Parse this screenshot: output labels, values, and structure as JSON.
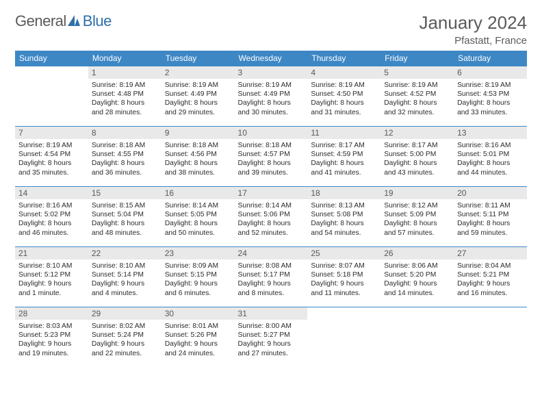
{
  "logo": {
    "text_a": "General",
    "text_b": "Blue"
  },
  "title": "January 2024",
  "location": "Pfastatt, France",
  "headers": [
    "Sunday",
    "Monday",
    "Tuesday",
    "Wednesday",
    "Thursday",
    "Friday",
    "Saturday"
  ],
  "colors": {
    "header_bg": "#3d87c5",
    "header_fg": "#ffffff",
    "daynum_bg": "#e9e9e9",
    "rule": "#3d87c5",
    "logo_gray": "#5a5a5a",
    "logo_blue": "#2f6fa8",
    "text": "#2b2b2b"
  },
  "typography": {
    "title_fontsize": 26,
    "location_fontsize": 15,
    "header_fontsize": 12,
    "daynum_fontsize": 12,
    "body_fontsize": 10.3
  },
  "weeks": [
    [
      {
        "n": "",
        "lines": []
      },
      {
        "n": "1",
        "lines": [
          "Sunrise: 8:19 AM",
          "Sunset: 4:48 PM",
          "Daylight: 8 hours",
          "and 28 minutes."
        ]
      },
      {
        "n": "2",
        "lines": [
          "Sunrise: 8:19 AM",
          "Sunset: 4:49 PM",
          "Daylight: 8 hours",
          "and 29 minutes."
        ]
      },
      {
        "n": "3",
        "lines": [
          "Sunrise: 8:19 AM",
          "Sunset: 4:49 PM",
          "Daylight: 8 hours",
          "and 30 minutes."
        ]
      },
      {
        "n": "4",
        "lines": [
          "Sunrise: 8:19 AM",
          "Sunset: 4:50 PM",
          "Daylight: 8 hours",
          "and 31 minutes."
        ]
      },
      {
        "n": "5",
        "lines": [
          "Sunrise: 8:19 AM",
          "Sunset: 4:52 PM",
          "Daylight: 8 hours",
          "and 32 minutes."
        ]
      },
      {
        "n": "6",
        "lines": [
          "Sunrise: 8:19 AM",
          "Sunset: 4:53 PM",
          "Daylight: 8 hours",
          "and 33 minutes."
        ]
      }
    ],
    [
      {
        "n": "7",
        "lines": [
          "Sunrise: 8:19 AM",
          "Sunset: 4:54 PM",
          "Daylight: 8 hours",
          "and 35 minutes."
        ]
      },
      {
        "n": "8",
        "lines": [
          "Sunrise: 8:18 AM",
          "Sunset: 4:55 PM",
          "Daylight: 8 hours",
          "and 36 minutes."
        ]
      },
      {
        "n": "9",
        "lines": [
          "Sunrise: 8:18 AM",
          "Sunset: 4:56 PM",
          "Daylight: 8 hours",
          "and 38 minutes."
        ]
      },
      {
        "n": "10",
        "lines": [
          "Sunrise: 8:18 AM",
          "Sunset: 4:57 PM",
          "Daylight: 8 hours",
          "and 39 minutes."
        ]
      },
      {
        "n": "11",
        "lines": [
          "Sunrise: 8:17 AM",
          "Sunset: 4:59 PM",
          "Daylight: 8 hours",
          "and 41 minutes."
        ]
      },
      {
        "n": "12",
        "lines": [
          "Sunrise: 8:17 AM",
          "Sunset: 5:00 PM",
          "Daylight: 8 hours",
          "and 43 minutes."
        ]
      },
      {
        "n": "13",
        "lines": [
          "Sunrise: 8:16 AM",
          "Sunset: 5:01 PM",
          "Daylight: 8 hours",
          "and 44 minutes."
        ]
      }
    ],
    [
      {
        "n": "14",
        "lines": [
          "Sunrise: 8:16 AM",
          "Sunset: 5:02 PM",
          "Daylight: 8 hours",
          "and 46 minutes."
        ]
      },
      {
        "n": "15",
        "lines": [
          "Sunrise: 8:15 AM",
          "Sunset: 5:04 PM",
          "Daylight: 8 hours",
          "and 48 minutes."
        ]
      },
      {
        "n": "16",
        "lines": [
          "Sunrise: 8:14 AM",
          "Sunset: 5:05 PM",
          "Daylight: 8 hours",
          "and 50 minutes."
        ]
      },
      {
        "n": "17",
        "lines": [
          "Sunrise: 8:14 AM",
          "Sunset: 5:06 PM",
          "Daylight: 8 hours",
          "and 52 minutes."
        ]
      },
      {
        "n": "18",
        "lines": [
          "Sunrise: 8:13 AM",
          "Sunset: 5:08 PM",
          "Daylight: 8 hours",
          "and 54 minutes."
        ]
      },
      {
        "n": "19",
        "lines": [
          "Sunrise: 8:12 AM",
          "Sunset: 5:09 PM",
          "Daylight: 8 hours",
          "and 57 minutes."
        ]
      },
      {
        "n": "20",
        "lines": [
          "Sunrise: 8:11 AM",
          "Sunset: 5:11 PM",
          "Daylight: 8 hours",
          "and 59 minutes."
        ]
      }
    ],
    [
      {
        "n": "21",
        "lines": [
          "Sunrise: 8:10 AM",
          "Sunset: 5:12 PM",
          "Daylight: 9 hours",
          "and 1 minute."
        ]
      },
      {
        "n": "22",
        "lines": [
          "Sunrise: 8:10 AM",
          "Sunset: 5:14 PM",
          "Daylight: 9 hours",
          "and 4 minutes."
        ]
      },
      {
        "n": "23",
        "lines": [
          "Sunrise: 8:09 AM",
          "Sunset: 5:15 PM",
          "Daylight: 9 hours",
          "and 6 minutes."
        ]
      },
      {
        "n": "24",
        "lines": [
          "Sunrise: 8:08 AM",
          "Sunset: 5:17 PM",
          "Daylight: 9 hours",
          "and 8 minutes."
        ]
      },
      {
        "n": "25",
        "lines": [
          "Sunrise: 8:07 AM",
          "Sunset: 5:18 PM",
          "Daylight: 9 hours",
          "and 11 minutes."
        ]
      },
      {
        "n": "26",
        "lines": [
          "Sunrise: 8:06 AM",
          "Sunset: 5:20 PM",
          "Daylight: 9 hours",
          "and 14 minutes."
        ]
      },
      {
        "n": "27",
        "lines": [
          "Sunrise: 8:04 AM",
          "Sunset: 5:21 PM",
          "Daylight: 9 hours",
          "and 16 minutes."
        ]
      }
    ],
    [
      {
        "n": "28",
        "lines": [
          "Sunrise: 8:03 AM",
          "Sunset: 5:23 PM",
          "Daylight: 9 hours",
          "and 19 minutes."
        ]
      },
      {
        "n": "29",
        "lines": [
          "Sunrise: 8:02 AM",
          "Sunset: 5:24 PM",
          "Daylight: 9 hours",
          "and 22 minutes."
        ]
      },
      {
        "n": "30",
        "lines": [
          "Sunrise: 8:01 AM",
          "Sunset: 5:26 PM",
          "Daylight: 9 hours",
          "and 24 minutes."
        ]
      },
      {
        "n": "31",
        "lines": [
          "Sunrise: 8:00 AM",
          "Sunset: 5:27 PM",
          "Daylight: 9 hours",
          "and 27 minutes."
        ]
      },
      {
        "n": "",
        "lines": []
      },
      {
        "n": "",
        "lines": []
      },
      {
        "n": "",
        "lines": []
      }
    ]
  ]
}
